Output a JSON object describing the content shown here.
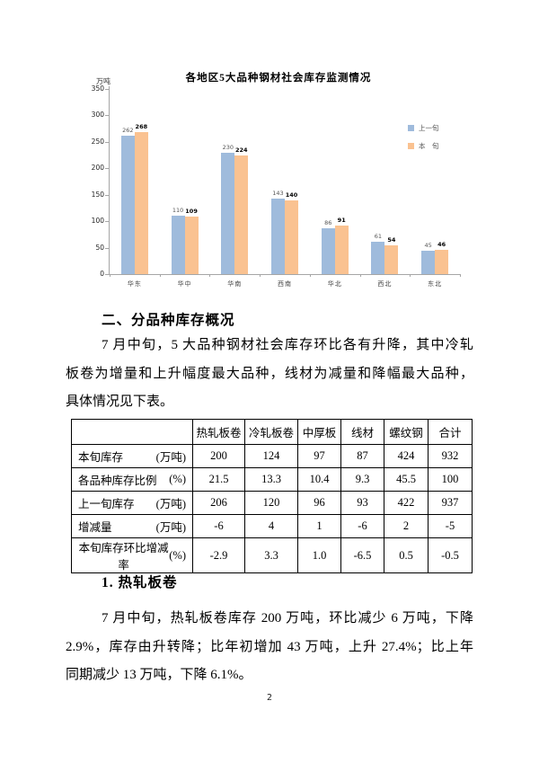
{
  "page_number": "2",
  "chart_data": {
    "type": "bar",
    "title": "各地区5大品种钢材社会库存监测情况",
    "ylabel": "万吨",
    "xlabel": "",
    "categories": [
      "华东",
      "华中",
      "华南",
      "西南",
      "华北",
      "西北",
      "东北"
    ],
    "series": [
      {
        "name": "上一旬",
        "color": "#9FBBDC",
        "values": [
          262,
          110,
          230,
          143,
          86,
          61,
          45
        ]
      },
      {
        "name": "本　旬",
        "color": "#FAC291",
        "values": [
          268,
          109,
          224,
          140,
          91,
          54,
          46
        ]
      }
    ],
    "ylim": [
      0,
      350
    ],
    "ytick_step": 50,
    "grid": false,
    "legend_position": "right",
    "axis_color": "#A6A6A6",
    "label_colors": {
      "prev": "#555555",
      "curr": "#000000"
    }
  },
  "section": {
    "heading": "二、分品种库存概况",
    "paragraph_lines": [
      "7 月中旬，5 大品种钢材社会库存环比各有升降，其中冷轧",
      "板卷为增量和上升幅度最大品种，线材为减量和降幅最大品种，",
      "具体情况见下表。"
    ]
  },
  "table": {
    "columns": [
      "",
      "热轧板卷",
      "冷轧板卷",
      "中厚板",
      "线材",
      "螺纹钢",
      "合计"
    ],
    "rows": [
      {
        "label": "本旬库存",
        "unit": "(万吨)",
        "values": [
          "200",
          "124",
          "97",
          "87",
          "424",
          "932"
        ]
      },
      {
        "label": "各品种库存比例",
        "unit": "(%)",
        "values": [
          "21.5",
          "13.3",
          "10.4",
          "9.3",
          "45.5",
          "100"
        ]
      },
      {
        "label": "上一旬库存",
        "unit": "(万吨)",
        "values": [
          "206",
          "120",
          "96",
          "93",
          "422",
          "937"
        ]
      },
      {
        "label": "增减量",
        "unit": "(万吨)",
        "values": [
          "-6",
          "4",
          "1",
          "-6",
          "2",
          "-5"
        ]
      },
      {
        "label": "本旬库存环比增减率",
        "unit": "(%)",
        "values": [
          "-2.9",
          "3.3",
          "1.0",
          "-6.5",
          "0.5",
          "-0.5"
        ]
      }
    ]
  },
  "subsection": {
    "heading": "1. 热轧板卷",
    "paragraph_lines": [
      "7 月中旬，热轧板卷库存 200 万吨，环比减少 6 万吨，下降",
      "2.9%，库存由升转降；比年初增加 43 万吨，上升 27.4%；比上年",
      "同期减少 13 万吨，下降 6.1%。"
    ]
  }
}
